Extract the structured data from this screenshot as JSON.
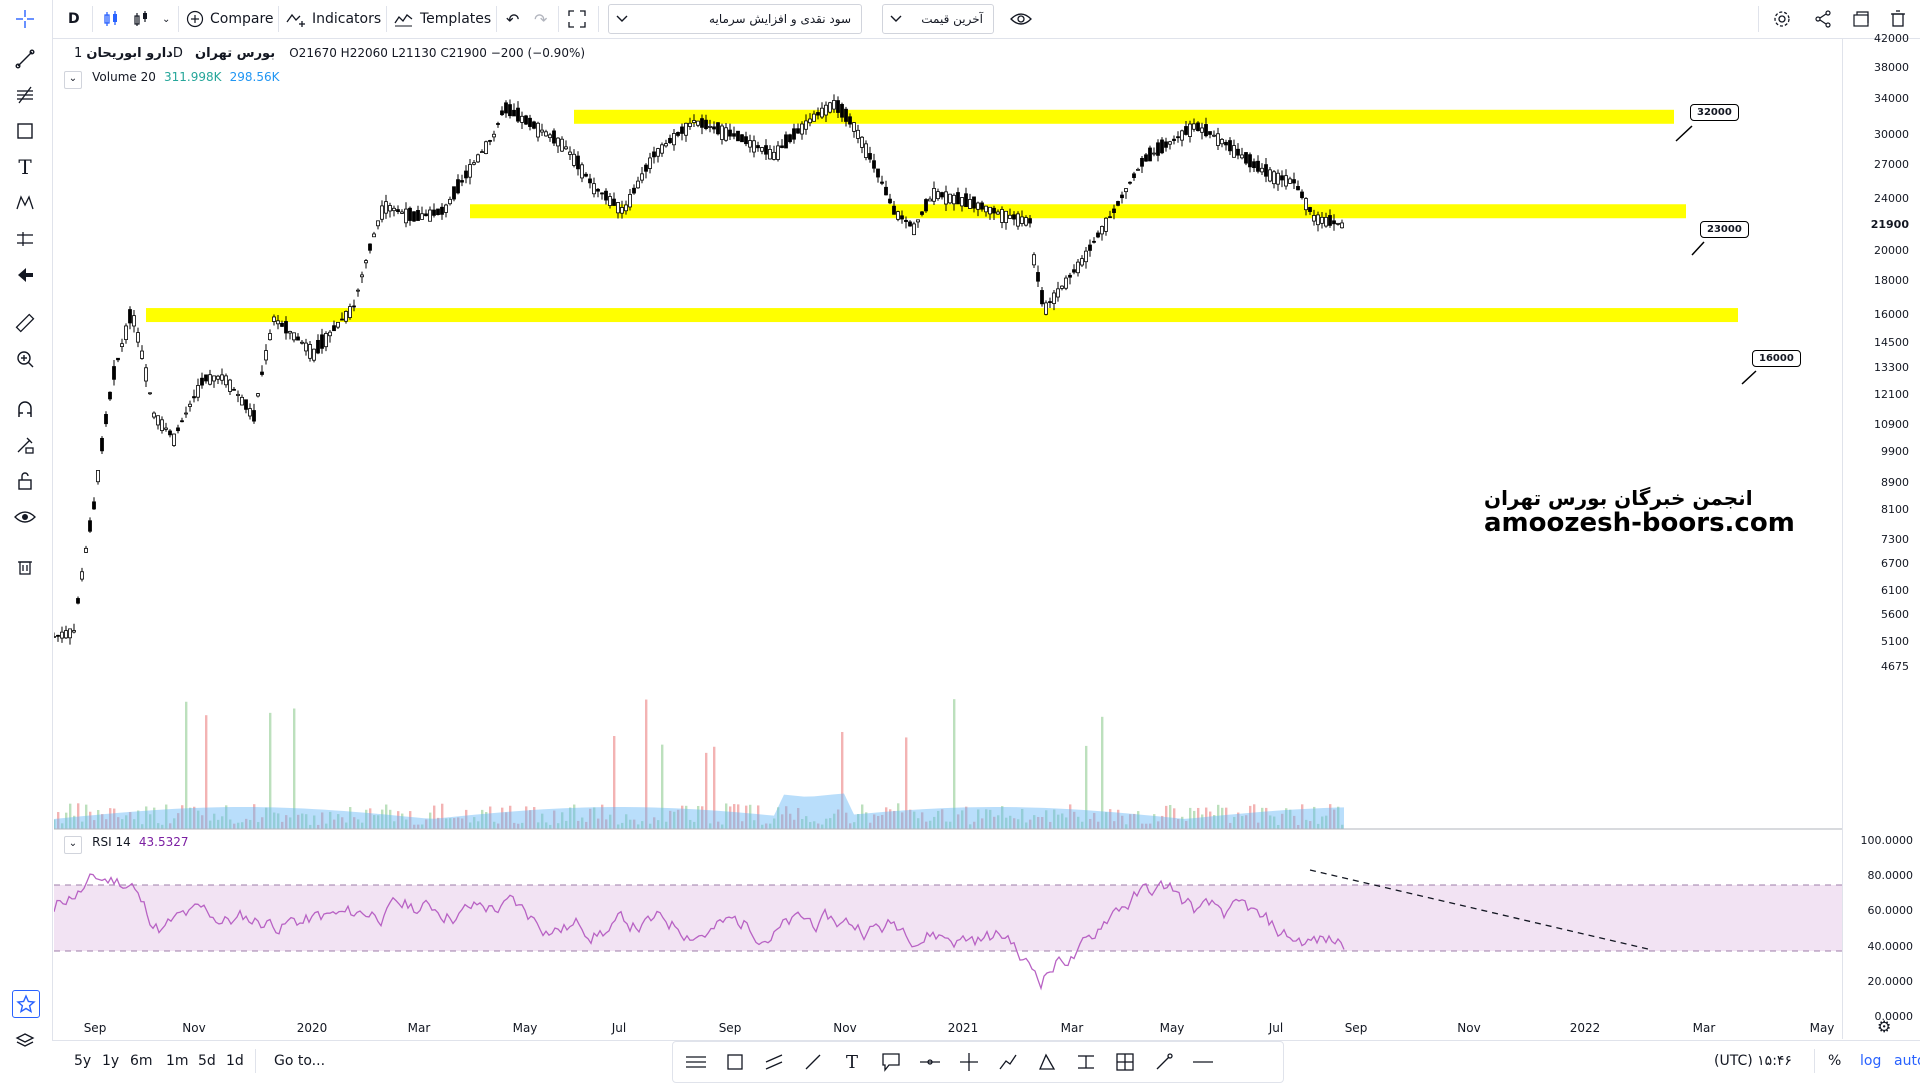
{
  "toolbar": {
    "interval": "D",
    "compare_label": "Compare",
    "indicators_label": "Indicators",
    "templates_label": "Templates",
    "strategy_select": "سود نقدی و افزایش سرمایه",
    "price_select": "آخرین قیمت"
  },
  "legend": {
    "symbol": "دارو ابوریحان",
    "interval": "1D",
    "exchange": "بورس تهران",
    "ohlc": "O21670 H22060 L21130 C21900 −200 (−0.90%)",
    "volume_label": "Volume 20",
    "volume_v1": "311.998K",
    "volume_v2": "298.56K",
    "rsi_label": "RSI 14",
    "rsi_value": "43.5327"
  },
  "price_labels": [
    "42000",
    "38000",
    "34000",
    "30000",
    "27000",
    "24000",
    "21900",
    "20000",
    "18000",
    "16000",
    "14500",
    "13300",
    "12100",
    "10900",
    "9900",
    "8900",
    "8100",
    "7300",
    "6700",
    "6100",
    "5600",
    "5100",
    "4675"
  ],
  "rsi_labels": [
    "100.0000",
    "80.0000",
    "60.0000",
    "40.0000",
    "20.0000",
    "0.0000"
  ],
  "time_labels": [
    "Sep",
    "Nov",
    "2020",
    "Mar",
    "May",
    "Jul",
    "Sep",
    "Nov",
    "2021",
    "Mar",
    "May",
    "Jul",
    "Sep",
    "Nov",
    "2022",
    "Mar",
    "May"
  ],
  "levels": [
    {
      "label": "32000",
      "price": 32000
    },
    {
      "label": "23000",
      "price": 23000
    },
    {
      "label": "16000",
      "price": 16000
    }
  ],
  "watermark": {
    "line1": "انجمن خبرگان بورس تهران",
    "line2": "amoozesh-boors.com"
  },
  "bottom": {
    "ranges": [
      "5y",
      "1y",
      "6m",
      "1m",
      "5d",
      "1d"
    ],
    "goto": "Go to...",
    "clock": "۱۵:۴۶ (UTC)",
    "percent": "%",
    "log": "log",
    "auto": "auto"
  },
  "colors": {
    "accent": "#2962ff",
    "level_fill": "#ffff00",
    "rsi_line": "#b862c4",
    "rsi_band": "#f2e3f3",
    "volume_area": "#64b5f6",
    "vol_up": "#a5d6a7",
    "vol_down": "#ef9a9a",
    "volume_up_text": "#26a69a",
    "volume_ma_text": "#2196f3",
    "rsi_value_text": "#7b1fa2"
  }
}
